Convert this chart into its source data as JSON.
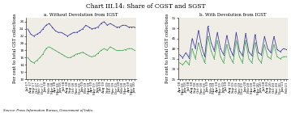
{
  "title": "Chart III.14: Share of CGST and SGST",
  "title_fontsize": 5.5,
  "source_text": "Source: Press Information Bureau, Government of India.",
  "panel_a_title": "a. Without Devolution from IGST",
  "panel_b_title": "b. With Devolution from IGST",
  "ylabel": "Per cent to total GST collections",
  "ylabel_fontsize": 3.8,
  "panel_a_cgst": [
    16.0,
    15.0,
    14.5,
    15.2,
    16.0,
    17.0,
    18.5,
    19.0,
    18.5,
    18.0,
    17.5,
    17.0,
    16.5,
    16.0,
    16.0,
    16.5,
    17.0,
    17.2,
    17.5,
    17.0,
    16.5,
    16.2,
    16.5,
    17.2,
    18.0,
    18.5,
    18.0,
    19.0,
    18.5,
    18.0,
    18.0,
    18.0,
    18.2,
    18.5,
    18.5,
    18.0
  ],
  "panel_a_sgst": [
    24.0,
    22.5,
    22.0,
    22.5,
    23.0,
    24.0,
    25.0,
    25.5,
    24.5,
    23.5,
    23.0,
    23.0,
    22.5,
    22.0,
    22.5,
    23.0,
    23.0,
    23.5,
    24.0,
    25.0,
    24.5,
    24.0,
    24.2,
    24.5,
    25.5,
    26.0,
    25.0,
    25.5,
    25.0,
    24.5,
    24.5,
    25.0,
    25.0,
    24.5,
    24.5,
    24.5
  ],
  "panel_a_xlabels": [
    "Jul-17",
    "Aug-17",
    "Sep-17",
    "Oct-17",
    "Nov-17",
    "Dec-17",
    "Jan-18",
    "Feb-18",
    "Mar-18",
    "Apr-18",
    "May-18",
    "Jun-18",
    "Jul-18",
    "Aug-18",
    "Sep-18",
    "Oct-18",
    "Nov-18",
    "Dec-18",
    "Jan-19",
    "Feb-19",
    "Mar-19",
    "Apr-19",
    "May-19",
    "Jun-19",
    "Jul-19",
    "Aug-19",
    "Sep-19",
    "Oct-19",
    "Nov-19",
    "Dec-19",
    "Jan-20",
    "Feb-20",
    "Mar-20",
    "Apr-20",
    "May-20",
    "Jun-20"
  ],
  "panel_a_ylim": [
    10,
    27
  ],
  "panel_a_yticks": [
    10,
    12,
    14,
    16,
    18,
    20,
    22,
    24,
    26
  ],
  "panel_b_cgst": [
    33.0,
    32.0,
    34.0,
    32.0,
    40.0,
    35.0,
    43.0,
    37.0,
    33.0,
    46.0,
    39.0,
    35.0,
    44.0,
    36.0,
    33.0,
    42.0,
    36.0,
    33.0,
    44.0,
    36.0,
    33.0,
    44.0,
    35.0,
    33.0,
    43.0,
    35.0,
    33.0,
    42.0,
    36.0,
    35.0,
    42.0,
    36.0,
    35.0,
    36.0,
    36.0
  ],
  "panel_b_sgst": [
    37.0,
    35.5,
    38.0,
    35.5,
    45.0,
    40.0,
    49.0,
    41.0,
    36.0,
    51.0,
    43.0,
    39.0,
    48.0,
    40.0,
    37.0,
    46.5,
    40.0,
    36.5,
    48.0,
    39.0,
    36.5,
    47.5,
    38.5,
    36.5,
    47.0,
    38.0,
    37.0,
    46.0,
    40.0,
    38.0,
    46.0,
    39.5,
    38.5,
    40.0,
    39.5
  ],
  "panel_b_xlabels": [
    "Apr-18",
    "May-18",
    "Jun-18",
    "Jul-18",
    "Aug-18",
    "Sep-18",
    "Oct-18",
    "Nov-18",
    "Dec-18",
    "Jan-19",
    "Feb-19",
    "Mar-19",
    "Apr-19",
    "May-19",
    "Jun-19",
    "Jul-19",
    "Aug-19",
    "Sep-19",
    "Oct-19",
    "Nov-19",
    "Dec-19",
    "Jan-20",
    "Feb-20",
    "Mar-20",
    "Apr-20",
    "May-20",
    "Jun-20",
    "Jul-20",
    "Aug-20",
    "Sep-20",
    "Oct-20",
    "Nov-20",
    "Dec-20",
    "Jan-21",
    "Feb-21"
  ],
  "panel_b_ylim": [
    25,
    55
  ],
  "panel_b_yticks": [
    25,
    30,
    35,
    40,
    45,
    50,
    55
  ],
  "cgst_color": "#4aaa5c",
  "sgst_color": "#4040a0",
  "line_width": 0.6,
  "marker_size": 0.8,
  "tick_fontsize": 3.0,
  "legend_fontsize": 3.8,
  "panel_bg": "#f0ede6"
}
